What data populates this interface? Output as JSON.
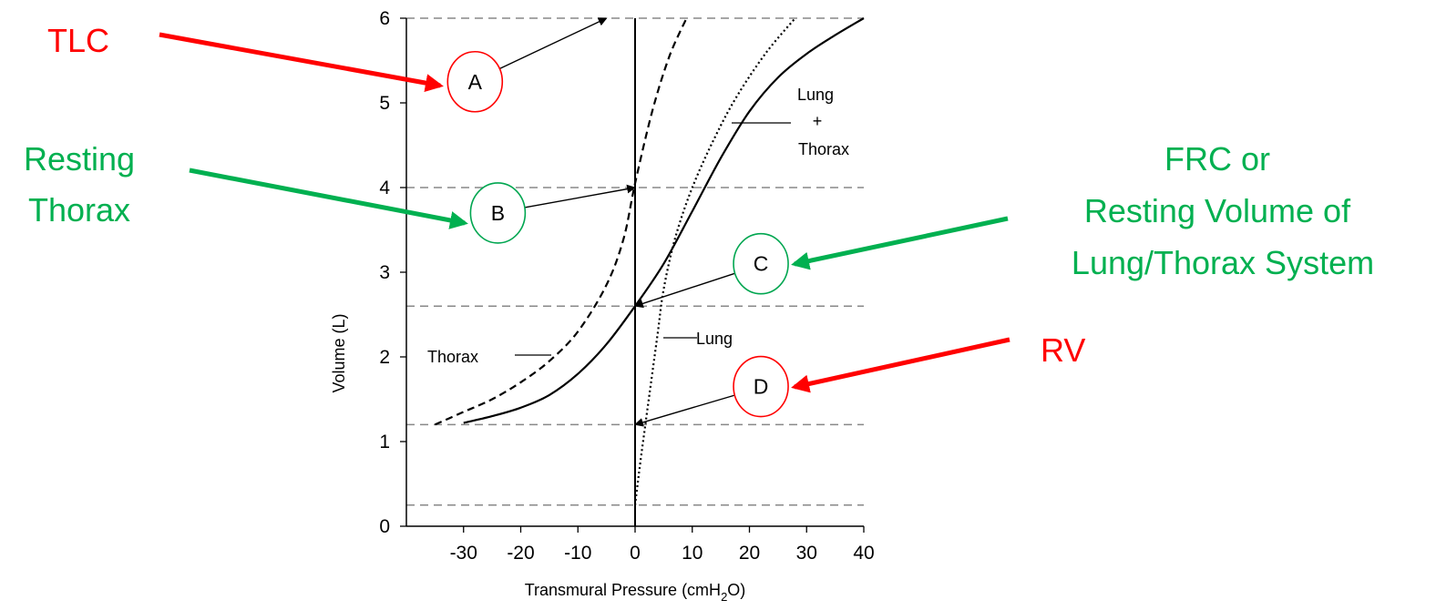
{
  "chart_data": {
    "type": "line",
    "title": "",
    "xlabel": "Transmural Pressure (cmH",
    "xlabel_sub": "2",
    "xlabel_end": "O)",
    "ylabel": "Volume (L)",
    "xlim": [
      -40,
      40
    ],
    "ylim": [
      0,
      6
    ],
    "x_ticks": [
      -30,
      -20,
      -10,
      0,
      10,
      20,
      30,
      40
    ],
    "y_ticks": [
      0,
      1,
      2,
      3,
      4,
      5,
      6
    ],
    "reference_lines_y": [
      6,
      4,
      2.6,
      1.2,
      0.25
    ],
    "series": [
      {
        "name": "Lung + Thorax",
        "style": "solid",
        "points": [
          [
            -30,
            1.22
          ],
          [
            -25,
            1.3
          ],
          [
            -20,
            1.4
          ],
          [
            -15,
            1.55
          ],
          [
            -10,
            1.8
          ],
          [
            -5,
            2.15
          ],
          [
            0,
            2.6
          ],
          [
            5,
            3.1
          ],
          [
            10,
            3.72
          ],
          [
            15,
            4.35
          ],
          [
            20,
            4.9
          ],
          [
            25,
            5.3
          ],
          [
            30,
            5.58
          ],
          [
            35,
            5.8
          ],
          [
            40,
            6.0
          ]
        ]
      },
      {
        "name": "Thorax",
        "style": "dashed",
        "points": [
          [
            -35,
            1.2
          ],
          [
            -30,
            1.35
          ],
          [
            -25,
            1.5
          ],
          [
            -20,
            1.7
          ],
          [
            -15,
            1.95
          ],
          [
            -10,
            2.3
          ],
          [
            -5,
            2.85
          ],
          [
            -2,
            3.4
          ],
          [
            0,
            4.05
          ],
          [
            3,
            4.9
          ],
          [
            6,
            5.55
          ],
          [
            9,
            6.0
          ]
        ]
      },
      {
        "name": "Lung",
        "style": "dotted",
        "points": [
          [
            0,
            0.25
          ],
          [
            1,
            0.8
          ],
          [
            2,
            1.3
          ],
          [
            3,
            1.8
          ],
          [
            4,
            2.3
          ],
          [
            5,
            2.8
          ],
          [
            7,
            3.4
          ],
          [
            10,
            4.0
          ],
          [
            14,
            4.6
          ],
          [
            18,
            5.1
          ],
          [
            23,
            5.6
          ],
          [
            28,
            6.0
          ]
        ]
      }
    ],
    "curve_labels": {
      "lung_thorax_1": "Lung",
      "lung_thorax_2": "+",
      "lung_thorax_3": "Thorax",
      "thorax": "Thorax",
      "lung": "Lung"
    },
    "points": [
      {
        "label": "A",
        "x": -28,
        "y": 5.25,
        "target": [
          -5,
          6.0
        ],
        "ring_color": "#ff0000"
      },
      {
        "label": "B",
        "x": -24,
        "y": 3.7,
        "target": [
          0,
          4.0
        ],
        "ring_color": "#00a650"
      },
      {
        "label": "C",
        "x": 22,
        "y": 3.1,
        "target": [
          0,
          2.6
        ],
        "ring_color": "#00a650"
      },
      {
        "label": "D",
        "x": 22,
        "y": 1.65,
        "target": [
          0,
          1.2
        ],
        "ring_color": "#ff0000"
      }
    ],
    "callouts": [
      {
        "name": "tlc",
        "lines": [
          "TLC"
        ],
        "color": "#ff0000"
      },
      {
        "name": "resting-thorax",
        "lines": [
          "Resting",
          "Thorax"
        ],
        "color": "#00b050"
      },
      {
        "name": "frc",
        "lines": [
          "FRC or",
          "Resting Volume of",
          "Lung/Thorax System"
        ],
        "color": "#00b050"
      },
      {
        "name": "rv",
        "lines": [
          "RV"
        ],
        "color": "#ff0000"
      }
    ]
  }
}
